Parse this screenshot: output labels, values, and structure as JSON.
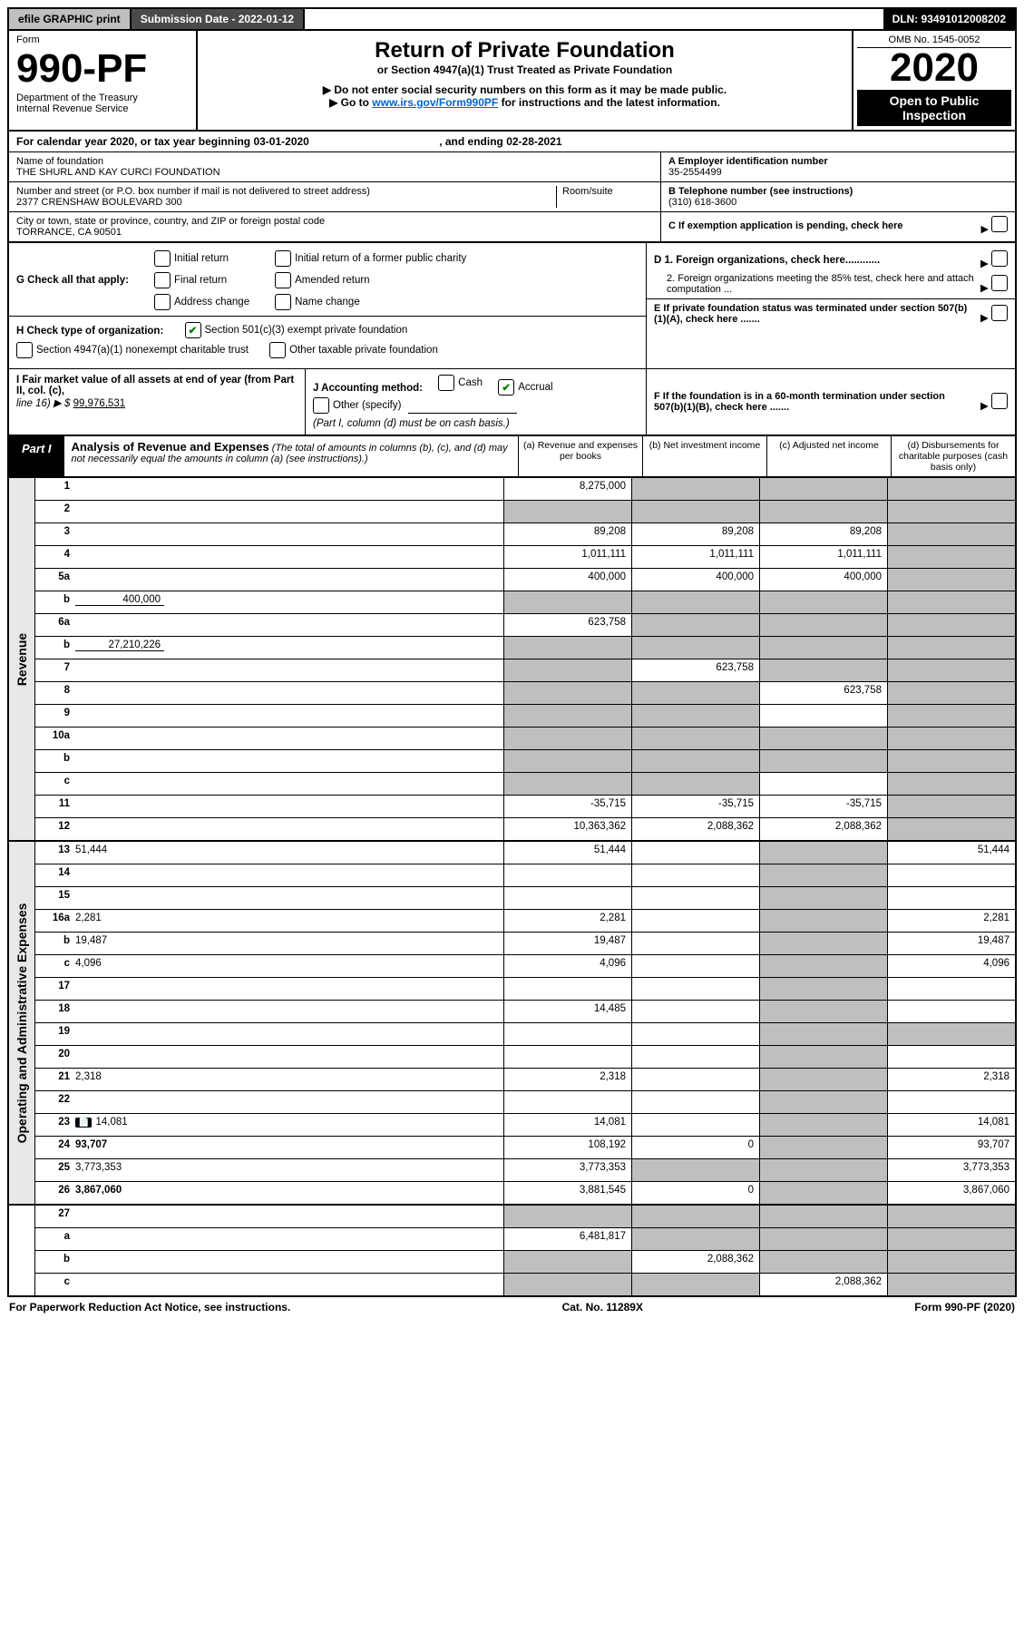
{
  "topbar": {
    "efile": "efile GRAPHIC print",
    "subdate": "Submission Date - 2022-01-12",
    "dln": "DLN: 93491012008202"
  },
  "header": {
    "form_word": "Form",
    "form_number": "990-PF",
    "dept": "Department of the Treasury",
    "irs": "Internal Revenue Service",
    "title": "Return of Private Foundation",
    "subtitle": "or Section 4947(a)(1) Trust Treated as Private Foundation",
    "note1": "▶ Do not enter social security numbers on this form as it may be made public.",
    "note2_pre": "▶ Go to ",
    "note2_link": "www.irs.gov/Form990PF",
    "note2_post": " for instructions and the latest information.",
    "omb": "OMB No. 1545-0052",
    "year": "2020",
    "open": "Open to Public Inspection"
  },
  "calendar": {
    "line_pre": "For calendar year 2020, or tax year beginning ",
    "begin": "03-01-2020",
    "mid": ", and ending ",
    "end": "02-28-2021"
  },
  "info": {
    "name_label": "Name of foundation",
    "name": "THE SHURL AND KAY CURCI FOUNDATION",
    "addr_label": "Number and street (or P.O. box number if mail is not delivered to street address)",
    "addr": "2377 CRENSHAW BOULEVARD 300",
    "room_label": "Room/suite",
    "city_label": "City or town, state or province, country, and ZIP or foreign postal code",
    "city": "TORRANCE, CA  90501",
    "a_label": "A Employer identification number",
    "a_val": "35-2554499",
    "b_label": "B Telephone number (see instructions)",
    "b_val": "(310) 618-3600",
    "c_label": "C If exemption application is pending, check here"
  },
  "g": {
    "prefix": "G Check all that apply:",
    "initial": "Initial return",
    "final": "Final return",
    "address": "Address change",
    "initial_former": "Initial return of a former public charity",
    "amended": "Amended return",
    "name_change": "Name change"
  },
  "h": {
    "prefix": "H Check type of organization:",
    "c3": "Section 501(c)(3) exempt private foundation",
    "nonexempt": "Section 4947(a)(1) nonexempt charitable trust",
    "other_taxable": "Other taxable private foundation"
  },
  "d": {
    "d1": "D 1. Foreign organizations, check here............",
    "d2": "2. Foreign organizations meeting the 85% test, check here and attach computation ...",
    "e": "E  If private foundation status was terminated under section 507(b)(1)(A), check here .......",
    "f": "F  If the foundation is in a 60-month termination under section 507(b)(1)(B), check here ......."
  },
  "i": {
    "prefix": "I Fair market value of all assets at end of year (from Part II, col. (c),",
    "line16": "line 16) ▶ $",
    "value": "99,976,531"
  },
  "j": {
    "prefix": "J Accounting method:",
    "cash": "Cash",
    "accrual": "Accrual",
    "other": "Other (specify)",
    "note": "(Part I, column (d) must be on cash basis.)"
  },
  "part": {
    "label": "Part I",
    "title": "Analysis of Revenue and Expenses",
    "sub": "(The total of amounts in columns (b), (c), and (d) may not necessarily equal the amounts in column (a) (see instructions).)",
    "col_a": "(a)   Revenue and expenses per books",
    "col_b": "(b)   Net investment income",
    "col_c": "(c)   Adjusted net income",
    "col_d": "(d)   Disbursements for charitable purposes (cash basis only)"
  },
  "side_labels": {
    "revenue": "Revenue",
    "expenses": "Operating and Administrative Expenses"
  },
  "rows": [
    {
      "n": "1",
      "d": "",
      "a": "8,275,000",
      "b": "",
      "c": "",
      "shade": [
        "b",
        "c",
        "d"
      ]
    },
    {
      "n": "2",
      "d": "",
      "a": "",
      "b": "",
      "c": "",
      "shade": [
        "a",
        "b",
        "c",
        "d"
      ]
    },
    {
      "n": "3",
      "d": "",
      "a": "89,208",
      "b": "89,208",
      "c": "89,208",
      "shade": [
        "d"
      ]
    },
    {
      "n": "4",
      "d": "",
      "a": "1,011,111",
      "b": "1,011,111",
      "c": "1,011,111",
      "shade": [
        "d"
      ]
    },
    {
      "n": "5a",
      "d": "",
      "a": "400,000",
      "b": "400,000",
      "c": "400,000",
      "shade": [
        "d"
      ]
    },
    {
      "n": "b",
      "d": "",
      "a": "",
      "b": "",
      "c": "",
      "shade": [
        "a",
        "b",
        "c",
        "d"
      ],
      "inline": "400,000"
    },
    {
      "n": "6a",
      "d": "",
      "a": "623,758",
      "b": "",
      "c": "",
      "shade": [
        "b",
        "c",
        "d"
      ]
    },
    {
      "n": "b",
      "d": "",
      "a": "",
      "b": "",
      "c": "",
      "shade": [
        "a",
        "b",
        "c",
        "d"
      ],
      "inline": "27,210,226"
    },
    {
      "n": "7",
      "d": "",
      "a": "",
      "b": "623,758",
      "c": "",
      "shade": [
        "a",
        "c",
        "d"
      ]
    },
    {
      "n": "8",
      "d": "",
      "a": "",
      "b": "",
      "c": "623,758",
      "shade": [
        "a",
        "b",
        "d"
      ]
    },
    {
      "n": "9",
      "d": "",
      "a": "",
      "b": "",
      "c": "",
      "shade": [
        "a",
        "b",
        "d"
      ]
    },
    {
      "n": "10a",
      "d": "",
      "a": "",
      "b": "",
      "c": "",
      "shade": [
        "a",
        "b",
        "c",
        "d"
      ]
    },
    {
      "n": "b",
      "d": "",
      "a": "",
      "b": "",
      "c": "",
      "shade": [
        "a",
        "b",
        "c",
        "d"
      ]
    },
    {
      "n": "c",
      "d": "",
      "a": "",
      "b": "",
      "c": "",
      "shade": [
        "a",
        "b",
        "d"
      ]
    },
    {
      "n": "11",
      "d": "",
      "a": "-35,715",
      "b": "-35,715",
      "c": "-35,715",
      "shade": [
        "d"
      ]
    },
    {
      "n": "12",
      "d": "",
      "a": "10,363,362",
      "b": "2,088,362",
      "c": "2,088,362",
      "shade": [
        "d"
      ],
      "bold": true
    }
  ],
  "exp_rows": [
    {
      "n": "13",
      "d": "51,444",
      "a": "51,444",
      "b": "",
      "c": "",
      "shade": [
        "c"
      ]
    },
    {
      "n": "14",
      "d": "",
      "a": "",
      "b": "",
      "c": "",
      "shade": [
        "c"
      ]
    },
    {
      "n": "15",
      "d": "",
      "a": "",
      "b": "",
      "c": "",
      "shade": [
        "c"
      ]
    },
    {
      "n": "16a",
      "d": "2,281",
      "a": "2,281",
      "b": "",
      "c": "",
      "shade": [
        "c"
      ]
    },
    {
      "n": "b",
      "d": "19,487",
      "a": "19,487",
      "b": "",
      "c": "",
      "shade": [
        "c"
      ]
    },
    {
      "n": "c",
      "d": "4,096",
      "a": "4,096",
      "b": "",
      "c": "",
      "shade": [
        "c"
      ]
    },
    {
      "n": "17",
      "d": "",
      "a": "",
      "b": "",
      "c": "",
      "shade": [
        "c"
      ]
    },
    {
      "n": "18",
      "d": "",
      "a": "14,485",
      "b": "",
      "c": "",
      "shade": [
        "c"
      ]
    },
    {
      "n": "19",
      "d": "",
      "a": "",
      "b": "",
      "c": "",
      "shade": [
        "c",
        "d"
      ]
    },
    {
      "n": "20",
      "d": "",
      "a": "",
      "b": "",
      "c": "",
      "shade": [
        "c"
      ]
    },
    {
      "n": "21",
      "d": "2,318",
      "a": "2,318",
      "b": "",
      "c": "",
      "shade": [
        "c"
      ]
    },
    {
      "n": "22",
      "d": "",
      "a": "",
      "b": "",
      "c": "",
      "shade": [
        "c"
      ]
    },
    {
      "n": "23",
      "d": "14,081",
      "a": "14,081",
      "b": "",
      "c": "",
      "shade": [
        "c"
      ],
      "icon": true
    },
    {
      "n": "24",
      "d": "93,707",
      "a": "108,192",
      "b": "0",
      "c": "",
      "shade": [
        "c"
      ],
      "bold": true
    },
    {
      "n": "25",
      "d": "3,773,353",
      "a": "3,773,353",
      "b": "",
      "c": "",
      "shade": [
        "b",
        "c"
      ]
    },
    {
      "n": "26",
      "d": "3,867,060",
      "a": "3,881,545",
      "b": "0",
      "c": "",
      "shade": [
        "c"
      ],
      "bold": true
    }
  ],
  "final_rows": [
    {
      "n": "27",
      "d": "",
      "a": "",
      "b": "",
      "c": "",
      "shade": [
        "a",
        "b",
        "c",
        "d"
      ]
    },
    {
      "n": "a",
      "d": "",
      "a": "6,481,817",
      "b": "",
      "c": "",
      "shade": [
        "b",
        "c",
        "d"
      ],
      "bold": true
    },
    {
      "n": "b",
      "d": "",
      "a": "",
      "b": "2,088,362",
      "c": "",
      "shade": [
        "a",
        "c",
        "d"
      ],
      "bold": true
    },
    {
      "n": "c",
      "d": "",
      "a": "",
      "b": "",
      "c": "2,088,362",
      "shade": [
        "a",
        "b",
        "d"
      ],
      "bold": true
    }
  ],
  "footer": {
    "left": "For Paperwork Reduction Act Notice, see instructions.",
    "mid": "Cat. No. 11289X",
    "right": "Form 990-PF (2020)"
  }
}
